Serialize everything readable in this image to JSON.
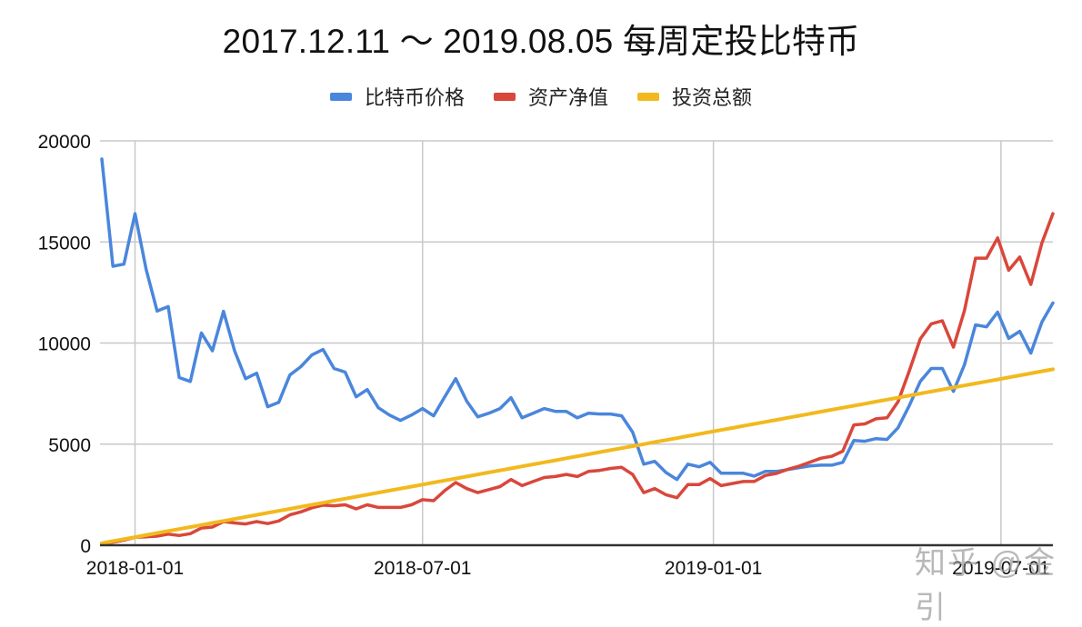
{
  "title": "2017.12.11 ～ 2019.08.05 每周定投比特币",
  "legend": [
    {
      "label": "比特币价格",
      "color": "#4a86dc"
    },
    {
      "label": "资产净值",
      "color": "#d9473b"
    },
    {
      "label": "投资总额",
      "color": "#f2b91e"
    }
  ],
  "watermark": "知乎 @金引",
  "chart_data": {
    "type": "line",
    "title": "2017.12.11 ～ 2019.08.05 每周定投比特币",
    "xlabel": "",
    "ylabel": "",
    "ylim": [
      0,
      20000
    ],
    "yticks": [
      0,
      5000,
      10000,
      15000,
      20000
    ],
    "xticks": [
      {
        "label": "2018-01-01",
        "index": 3
      },
      {
        "label": "2018-07-01",
        "index": 29
      },
      {
        "label": "2019-01-01",
        "index": 55.3
      },
      {
        "label": "2019-07-01",
        "index": 81.3
      }
    ],
    "x_start": "2017-12-11",
    "x_end": "2019-08-05",
    "x_interval": "weekly",
    "grid": true,
    "legend_position": "top",
    "series": [
      {
        "name": "比特币价格",
        "color": "#4a86dc",
        "values": [
          19100,
          13800,
          13900,
          16400,
          13650,
          11580,
          11800,
          8290,
          8100,
          10500,
          9620,
          11570,
          9620,
          8240,
          8510,
          6850,
          7070,
          8420,
          8830,
          9410,
          9680,
          8740,
          8560,
          7340,
          7700,
          6800,
          6440,
          6170,
          6440,
          6760,
          6400,
          7340,
          8240,
          7120,
          6350,
          6530,
          6760,
          7300,
          6300,
          6530,
          6760,
          6620,
          6620,
          6300,
          6530,
          6490,
          6490,
          6400,
          5590,
          4010,
          4150,
          3600,
          3250,
          4010,
          3880,
          4100,
          3560,
          3560,
          3560,
          3420,
          3650,
          3650,
          3740,
          3830,
          3920,
          3960,
          3960,
          4100,
          5180,
          5140,
          5270,
          5230,
          5810,
          6890,
          8100,
          8740,
          8740,
          7610,
          8920,
          10900,
          10800,
          11530,
          10230,
          10580,
          9500,
          11040,
          11980
        ]
      },
      {
        "name": "资产净值",
        "color": "#d9473b",
        "values": [
          100,
          150,
          250,
          390,
          420,
          450,
          550,
          480,
          570,
          850,
          900,
          1170,
          1100,
          1050,
          1170,
          1070,
          1200,
          1500,
          1650,
          1850,
          1980,
          1950,
          2000,
          1800,
          2000,
          1870,
          1870,
          1870,
          2000,
          2250,
          2200,
          2700,
          3100,
          2800,
          2600,
          2750,
          2900,
          3250,
          2950,
          3150,
          3350,
          3400,
          3500,
          3400,
          3650,
          3700,
          3800,
          3850,
          3500,
          2600,
          2800,
          2500,
          2350,
          3000,
          3000,
          3300,
          2950,
          3050,
          3150,
          3150,
          3450,
          3550,
          3750,
          3900,
          4100,
          4300,
          4400,
          4650,
          5950,
          6000,
          6250,
          6300,
          7100,
          8600,
          10200,
          10950,
          11100,
          9800,
          11600,
          14200,
          14200,
          15200,
          13600,
          14250,
          12900,
          14950,
          16400
        ]
      },
      {
        "name": "投资总额",
        "color": "#f2b91e",
        "values": [
          100,
          200,
          300,
          400,
          500,
          600,
          700,
          800,
          900,
          1000,
          1100,
          1200,
          1300,
          1400,
          1500,
          1600,
          1700,
          1800,
          1900,
          2000,
          2100,
          2200,
          2300,
          2400,
          2500,
          2600,
          2700,
          2800,
          2900,
          3000,
          3100,
          3200,
          3300,
          3400,
          3500,
          3600,
          3700,
          3800,
          3900,
          4000,
          4100,
          4200,
          4300,
          4400,
          4500,
          4600,
          4700,
          4800,
          4900,
          5000,
          5100,
          5200,
          5300,
          5400,
          5500,
          5600,
          5700,
          5800,
          5900,
          6000,
          6100,
          6200,
          6300,
          6400,
          6500,
          6600,
          6700,
          6800,
          6900,
          7000,
          7100,
          7200,
          7300,
          7400,
          7500,
          7600,
          7700,
          7800,
          7900,
          8000,
          8100,
          8200,
          8300,
          8400,
          8500,
          8600,
          8700
        ]
      }
    ]
  }
}
